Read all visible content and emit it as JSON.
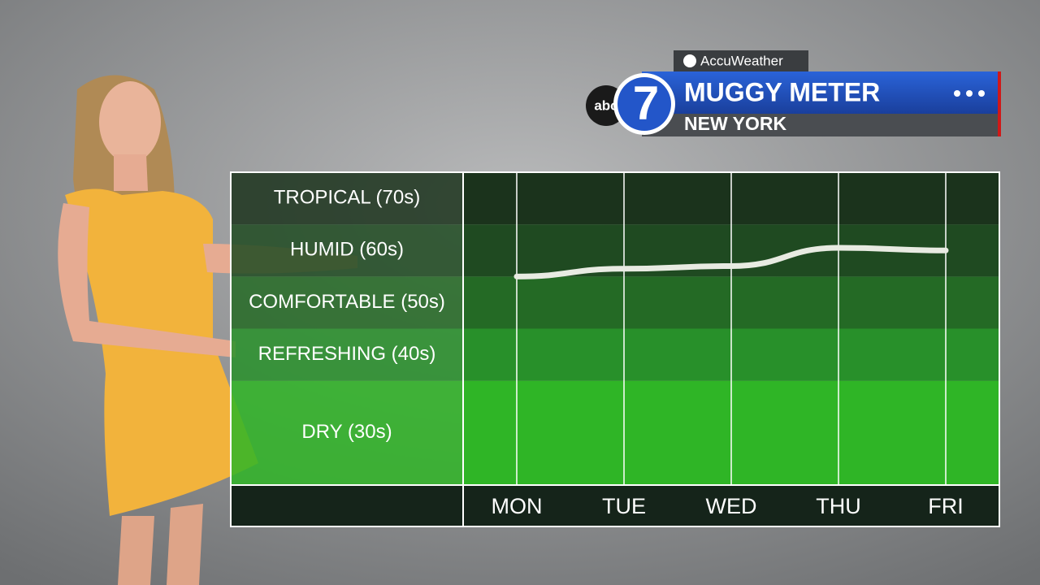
{
  "header": {
    "brand": "AccuWeather",
    "logo_text": "abc",
    "logo_number": "7",
    "title": "MUGGY METER",
    "subtitle": "NEW YORK"
  },
  "chart_data": {
    "type": "line",
    "categories": [
      "MON",
      "TUE",
      "WED",
      "THU",
      "FRI"
    ],
    "series": [
      {
        "color": "#e8ebe2",
        "values": [
          60,
          61.5,
          62,
          65.5,
          65
        ]
      }
    ],
    "ylim": [
      20,
      80
    ],
    "bands": [
      {
        "label": "DRY (30s)",
        "from": 20,
        "to": 40,
        "color": "#2fb526"
      },
      {
        "label": "REFRESHING (40s)",
        "from": 40,
        "to": 50,
        "color": "#28902a"
      },
      {
        "label": "COMFORTABLE (50s)",
        "from": 50,
        "to": 60,
        "color": "#246a25"
      },
      {
        "label": "HUMID (60s)",
        "from": 60,
        "to": 70,
        "color": "#1f4a21"
      },
      {
        "label": "TROPICAL (70s)",
        "from": 70,
        "to": 80,
        "color": "#1b331c"
      }
    ]
  }
}
